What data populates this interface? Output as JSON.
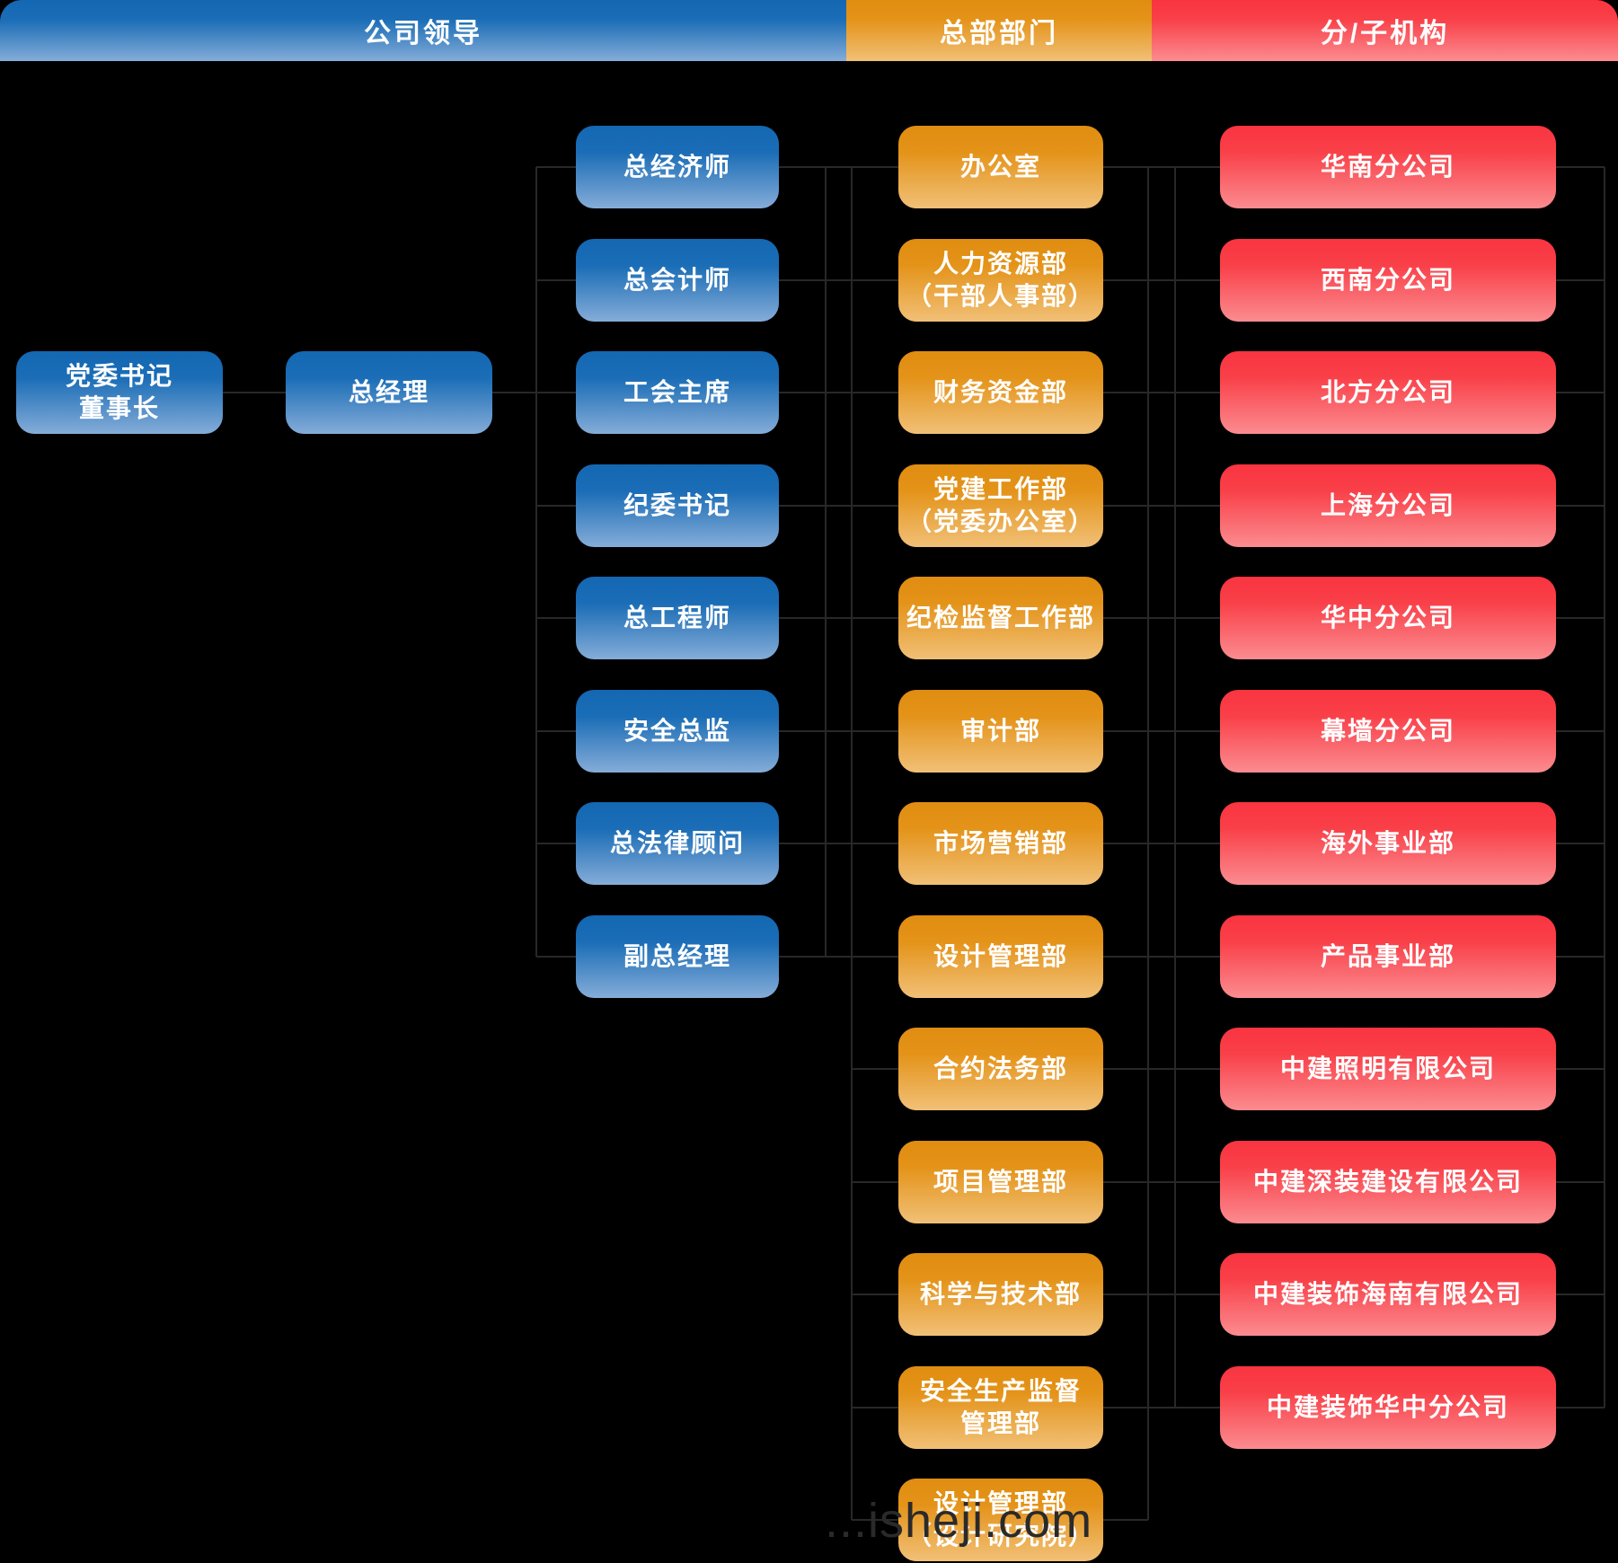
{
  "header": {
    "segments": [
      {
        "key": "leadership",
        "label": "公司领导"
      },
      {
        "key": "hq",
        "label": "总部部门"
      },
      {
        "key": "branches",
        "label": "分/子机构"
      }
    ]
  },
  "leadership": {
    "chairman_line1": "党委书记",
    "chairman_line2": "董事长",
    "general_manager": "总经理",
    "officers": [
      "总经济师",
      "总会计师",
      "工会主席",
      "纪委书记",
      "总工程师",
      "安全总监",
      "总法律顾问",
      "副总经理"
    ]
  },
  "hq_departments": [
    [
      "办公室"
    ],
    [
      "人力资源部",
      "（干部人事部）"
    ],
    [
      "财务资金部"
    ],
    [
      "党建工作部",
      "（党委办公室）"
    ],
    [
      "纪检监督工作部"
    ],
    [
      "审计部"
    ],
    [
      "市场营销部"
    ],
    [
      "设计管理部"
    ],
    [
      "合约法务部"
    ],
    [
      "项目管理部"
    ],
    [
      "科学与技术部"
    ],
    [
      "安全生产监督",
      "管理部"
    ],
    [
      "设计管理部",
      "（设计研究院）"
    ]
  ],
  "branches": [
    "华南分公司",
    "西南分公司",
    "北方分公司",
    "上海分公司",
    "华中分公司",
    "幕墙分公司",
    "海外事业部",
    "产品事业部",
    "中建照明有限公司",
    "中建深装建设有限公司",
    "中建装饰海南有限公司",
    "中建装饰华中分公司"
  ],
  "watermark": "...isheji.com",
  "colors": {
    "background": "#000000",
    "line": "#282828",
    "blue_top": "#1467b2",
    "blue_mid": "#1a6db6",
    "blue_bottom": "#85acd8",
    "orange_top": "#e08d10",
    "orange_mid": "#e49319",
    "orange_bottom": "#f1c077",
    "red_top": "#f93440",
    "red_mid": "#f94049",
    "red_bottom": "#fb8c90",
    "text": "#ffffff",
    "watermark_text": "#2a2a2a"
  }
}
